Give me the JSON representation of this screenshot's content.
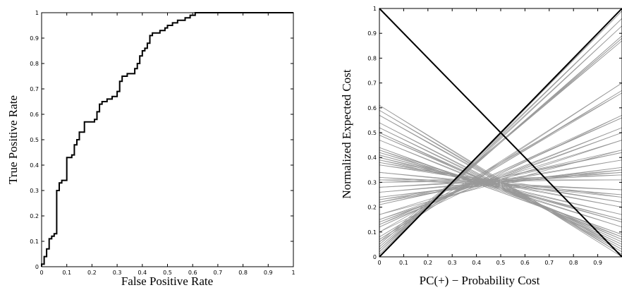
{
  "chart_data": [
    {
      "type": "line",
      "title": "",
      "xlabel": "False Positive Rate",
      "ylabel": "True Positive Rate",
      "xlim": [
        0,
        1
      ],
      "ylim": [
        0,
        1
      ],
      "xticks": [
        "0",
        "0.1",
        "0.2",
        "0.3",
        "0.4",
        "0.5",
        "0.6",
        "0.7",
        "0.8",
        "0.9",
        "1"
      ],
      "yticks": [
        "0",
        "0.1",
        "0.2",
        "0.3",
        "0.4",
        "0.5",
        "0.6",
        "0.7",
        "0.8",
        "0.9",
        "1"
      ],
      "grid": false,
      "line_color": "#000000",
      "series": [
        {
          "x": [
            0,
            0,
            0.01,
            0.01,
            0.02,
            0.02,
            0.03,
            0.03,
            0.04,
            0.04,
            0.05,
            0.05,
            0.06,
            0.06,
            0.07,
            0.07,
            0.08,
            0.08,
            0.1,
            0.1,
            0.12,
            0.12,
            0.13,
            0.13,
            0.14,
            0.14,
            0.15,
            0.15,
            0.17,
            0.17,
            0.21,
            0.21,
            0.22,
            0.22,
            0.23,
            0.23,
            0.24,
            0.24,
            0.26,
            0.26,
            0.28,
            0.28,
            0.3,
            0.3,
            0.31,
            0.31,
            0.32,
            0.32,
            0.34,
            0.34,
            0.37,
            0.37,
            0.38,
            0.38,
            0.39,
            0.39,
            0.4,
            0.4,
            0.41,
            0.41,
            0.42,
            0.42,
            0.43,
            0.43,
            0.44,
            0.44,
            0.47,
            0.47,
            0.49,
            0.49,
            0.5,
            0.5,
            0.52,
            0.52,
            0.54,
            0.54,
            0.57,
            0.57,
            0.59,
            0.59,
            0.61,
            0.61,
            1.0
          ],
          "y": [
            0,
            0.01,
            0.01,
            0.04,
            0.04,
            0.07,
            0.07,
            0.11,
            0.11,
            0.12,
            0.12,
            0.13,
            0.13,
            0.3,
            0.3,
            0.33,
            0.33,
            0.34,
            0.34,
            0.43,
            0.43,
            0.44,
            0.44,
            0.48,
            0.48,
            0.5,
            0.5,
            0.53,
            0.53,
            0.57,
            0.57,
            0.58,
            0.58,
            0.61,
            0.61,
            0.64,
            0.64,
            0.65,
            0.65,
            0.66,
            0.66,
            0.67,
            0.67,
            0.69,
            0.69,
            0.73,
            0.73,
            0.75,
            0.75,
            0.76,
            0.76,
            0.78,
            0.78,
            0.8,
            0.8,
            0.83,
            0.83,
            0.85,
            0.85,
            0.86,
            0.86,
            0.88,
            0.88,
            0.91,
            0.91,
            0.92,
            0.92,
            0.93,
            0.93,
            0.94,
            0.94,
            0.95,
            0.95,
            0.96,
            0.96,
            0.97,
            0.97,
            0.98,
            0.98,
            0.99,
            0.99,
            1.0,
            1.0
          ]
        }
      ]
    },
    {
      "type": "line",
      "title": "",
      "xlabel": "PC(+) − Probability Cost",
      "ylabel": "Normalized Expected Cost",
      "xlim": [
        0,
        1
      ],
      "ylim": [
        0,
        1
      ],
      "xticks": [
        "0",
        "0.1",
        "0.2",
        "0.3",
        "0.4",
        "0.5",
        "0.6",
        "0.7",
        "0.8",
        "0.9"
      ],
      "yticks": [
        "0",
        "0.1",
        "0.2",
        "0.3",
        "0.4",
        "0.5",
        "0.6",
        "0.7",
        "0.8",
        "0.9",
        "1"
      ],
      "grid": false,
      "cost_line_color": "#999999",
      "diagonal_color": "#000000",
      "diagonals": [
        {
          "x": [
            0,
            1
          ],
          "y": [
            0,
            1
          ]
        },
        {
          "x": [
            0,
            1
          ],
          "y": [
            1,
            0
          ]
        }
      ],
      "cost_lines_from": "roc_points_of_chart_1"
    }
  ]
}
